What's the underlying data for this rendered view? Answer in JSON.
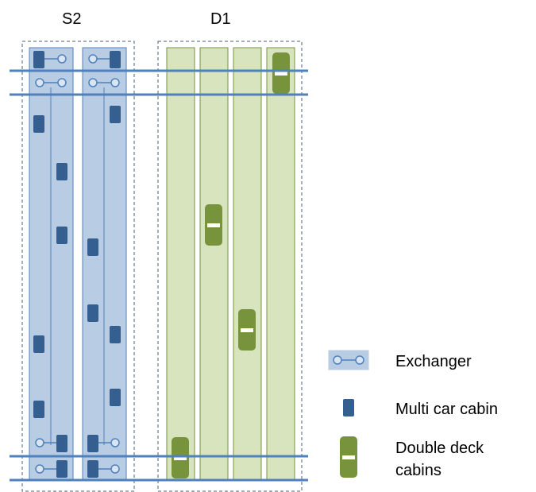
{
  "groups": {
    "s2": {
      "label": "S2"
    },
    "d1": {
      "label": "D1"
    }
  },
  "legend": {
    "exchanger": "Exchanger",
    "multi_car_cabin": "Multi car cabin",
    "double_deck_line1": "Double deck",
    "double_deck_line2": "cabins"
  },
  "colors": {
    "shaft_blue_fill": "#b8cce4",
    "shaft_blue_stroke": "#4f81bd",
    "shaft_green_fill": "#d7e4bd",
    "shaft_green_stroke": "#77933c",
    "cabin_blue": "#365f91",
    "cabin_green": "#77933c",
    "floor_line": "#4f81bd"
  },
  "icons": [
    "exchanger-icon",
    "multi-car-cabin-icon",
    "double-deck-cabin-icon"
  ]
}
